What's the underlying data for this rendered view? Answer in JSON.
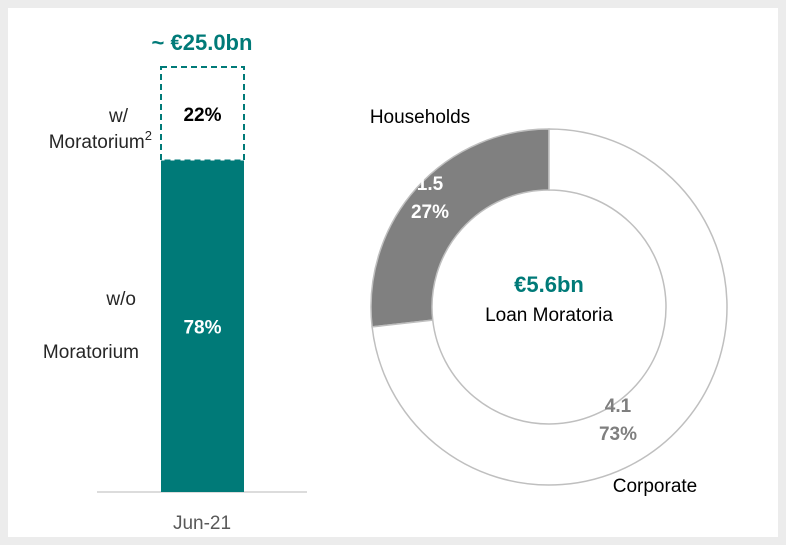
{
  "chart_data": [
    {
      "type": "stacked-bar",
      "annotation": "~ €25.0bn",
      "categories": [
        "Jun-21"
      ],
      "ylim": [
        0,
        100
      ],
      "series": [
        {
          "name_lines": [
            "w/o",
            "Moratorium"
          ],
          "color": "#007a78",
          "values": [
            78
          ],
          "value_labels": [
            "78%"
          ],
          "label_color": "#ffffff"
        },
        {
          "name_lines": [
            "w/",
            "Moratorium"
          ],
          "footnote": "2",
          "color": "#ffffff",
          "border": "dashed",
          "border_color": "#007a78",
          "values": [
            22
          ],
          "value_labels": [
            "22%"
          ],
          "label_color": "#000000"
        }
      ]
    },
    {
      "type": "donut",
      "center_value": "€5.6bn",
      "center_label": "Loan Moratoria",
      "categories": [
        "Households",
        "Corporate"
      ],
      "values": [
        1.5,
        4.1
      ],
      "shares": [
        27,
        73
      ],
      "share_labels": [
        "27%",
        "73%"
      ],
      "colors": [
        "#808080",
        "#ffffff"
      ],
      "label_colors": [
        "#ffffff",
        "#7f7f7f"
      ]
    }
  ]
}
